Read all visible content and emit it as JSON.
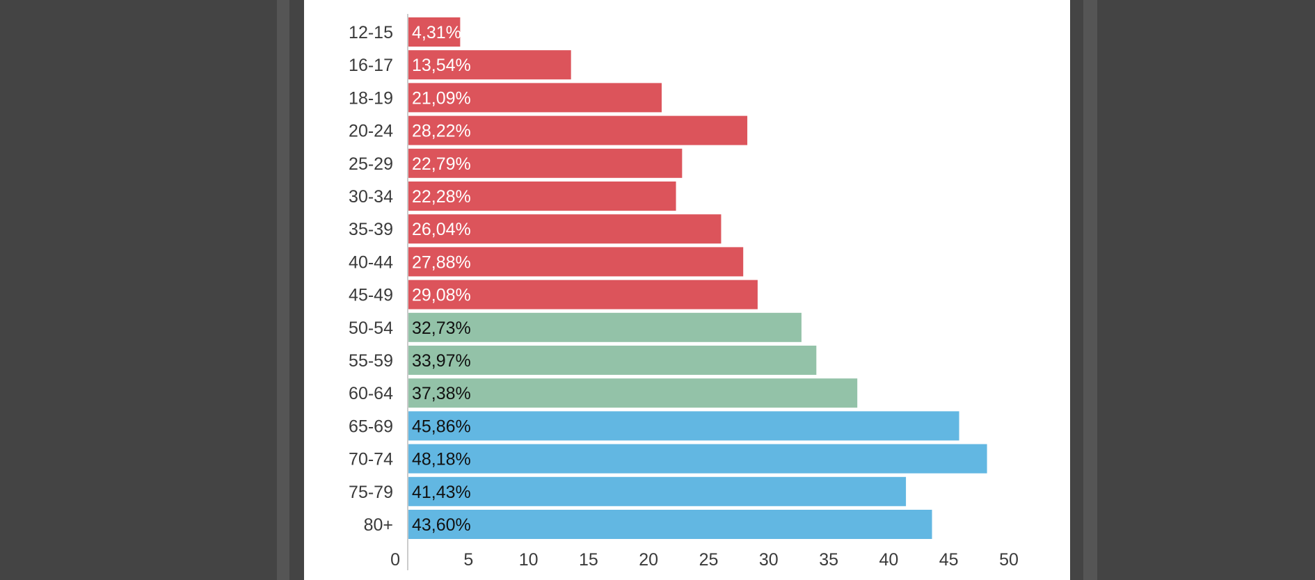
{
  "chart_data": {
    "type": "bar",
    "orientation": "horizontal",
    "title": "",
    "xlabel": "",
    "ylabel": "",
    "categories": [
      "12-15",
      "16-17",
      "18-19",
      "20-24",
      "25-29",
      "30-34",
      "35-39",
      "40-44",
      "45-49",
      "50-54",
      "55-59",
      "60-64",
      "65-69",
      "70-74",
      "75-79",
      "80+"
    ],
    "values": [
      4.31,
      13.54,
      21.09,
      28.22,
      22.79,
      22.28,
      26.04,
      27.88,
      29.08,
      32.73,
      33.97,
      37.38,
      45.86,
      48.18,
      41.43,
      43.6
    ],
    "value_labels": [
      "4,31%",
      "13,54%",
      "21,09%",
      "28,22%",
      "22,79%",
      "22,28%",
      "26,04%",
      "27,88%",
      "29,08%",
      "32,73%",
      "33,97%",
      "37,38%",
      "45,86%",
      "48,18%",
      "41,43%",
      "43,60%"
    ],
    "bar_colors": [
      "#dc545b",
      "#dc545b",
      "#dc545b",
      "#dc545b",
      "#dc545b",
      "#dc545b",
      "#dc545b",
      "#dc545b",
      "#dc545b",
      "#93c2a8",
      "#93c2a8",
      "#93c2a8",
      "#62b7e2",
      "#62b7e2",
      "#62b7e2",
      "#62b7e2"
    ],
    "label_colors": [
      "#ffffff",
      "#ffffff",
      "#ffffff",
      "#ffffff",
      "#ffffff",
      "#ffffff",
      "#ffffff",
      "#ffffff",
      "#ffffff",
      "#111111",
      "#111111",
      "#111111",
      "#111111",
      "#111111",
      "#111111",
      "#111111"
    ],
    "xlim": [
      0,
      50
    ],
    "xticks": [
      0,
      5,
      10,
      15,
      20,
      25,
      30,
      35,
      40,
      45,
      50
    ],
    "grid": false,
    "legend": "none"
  }
}
